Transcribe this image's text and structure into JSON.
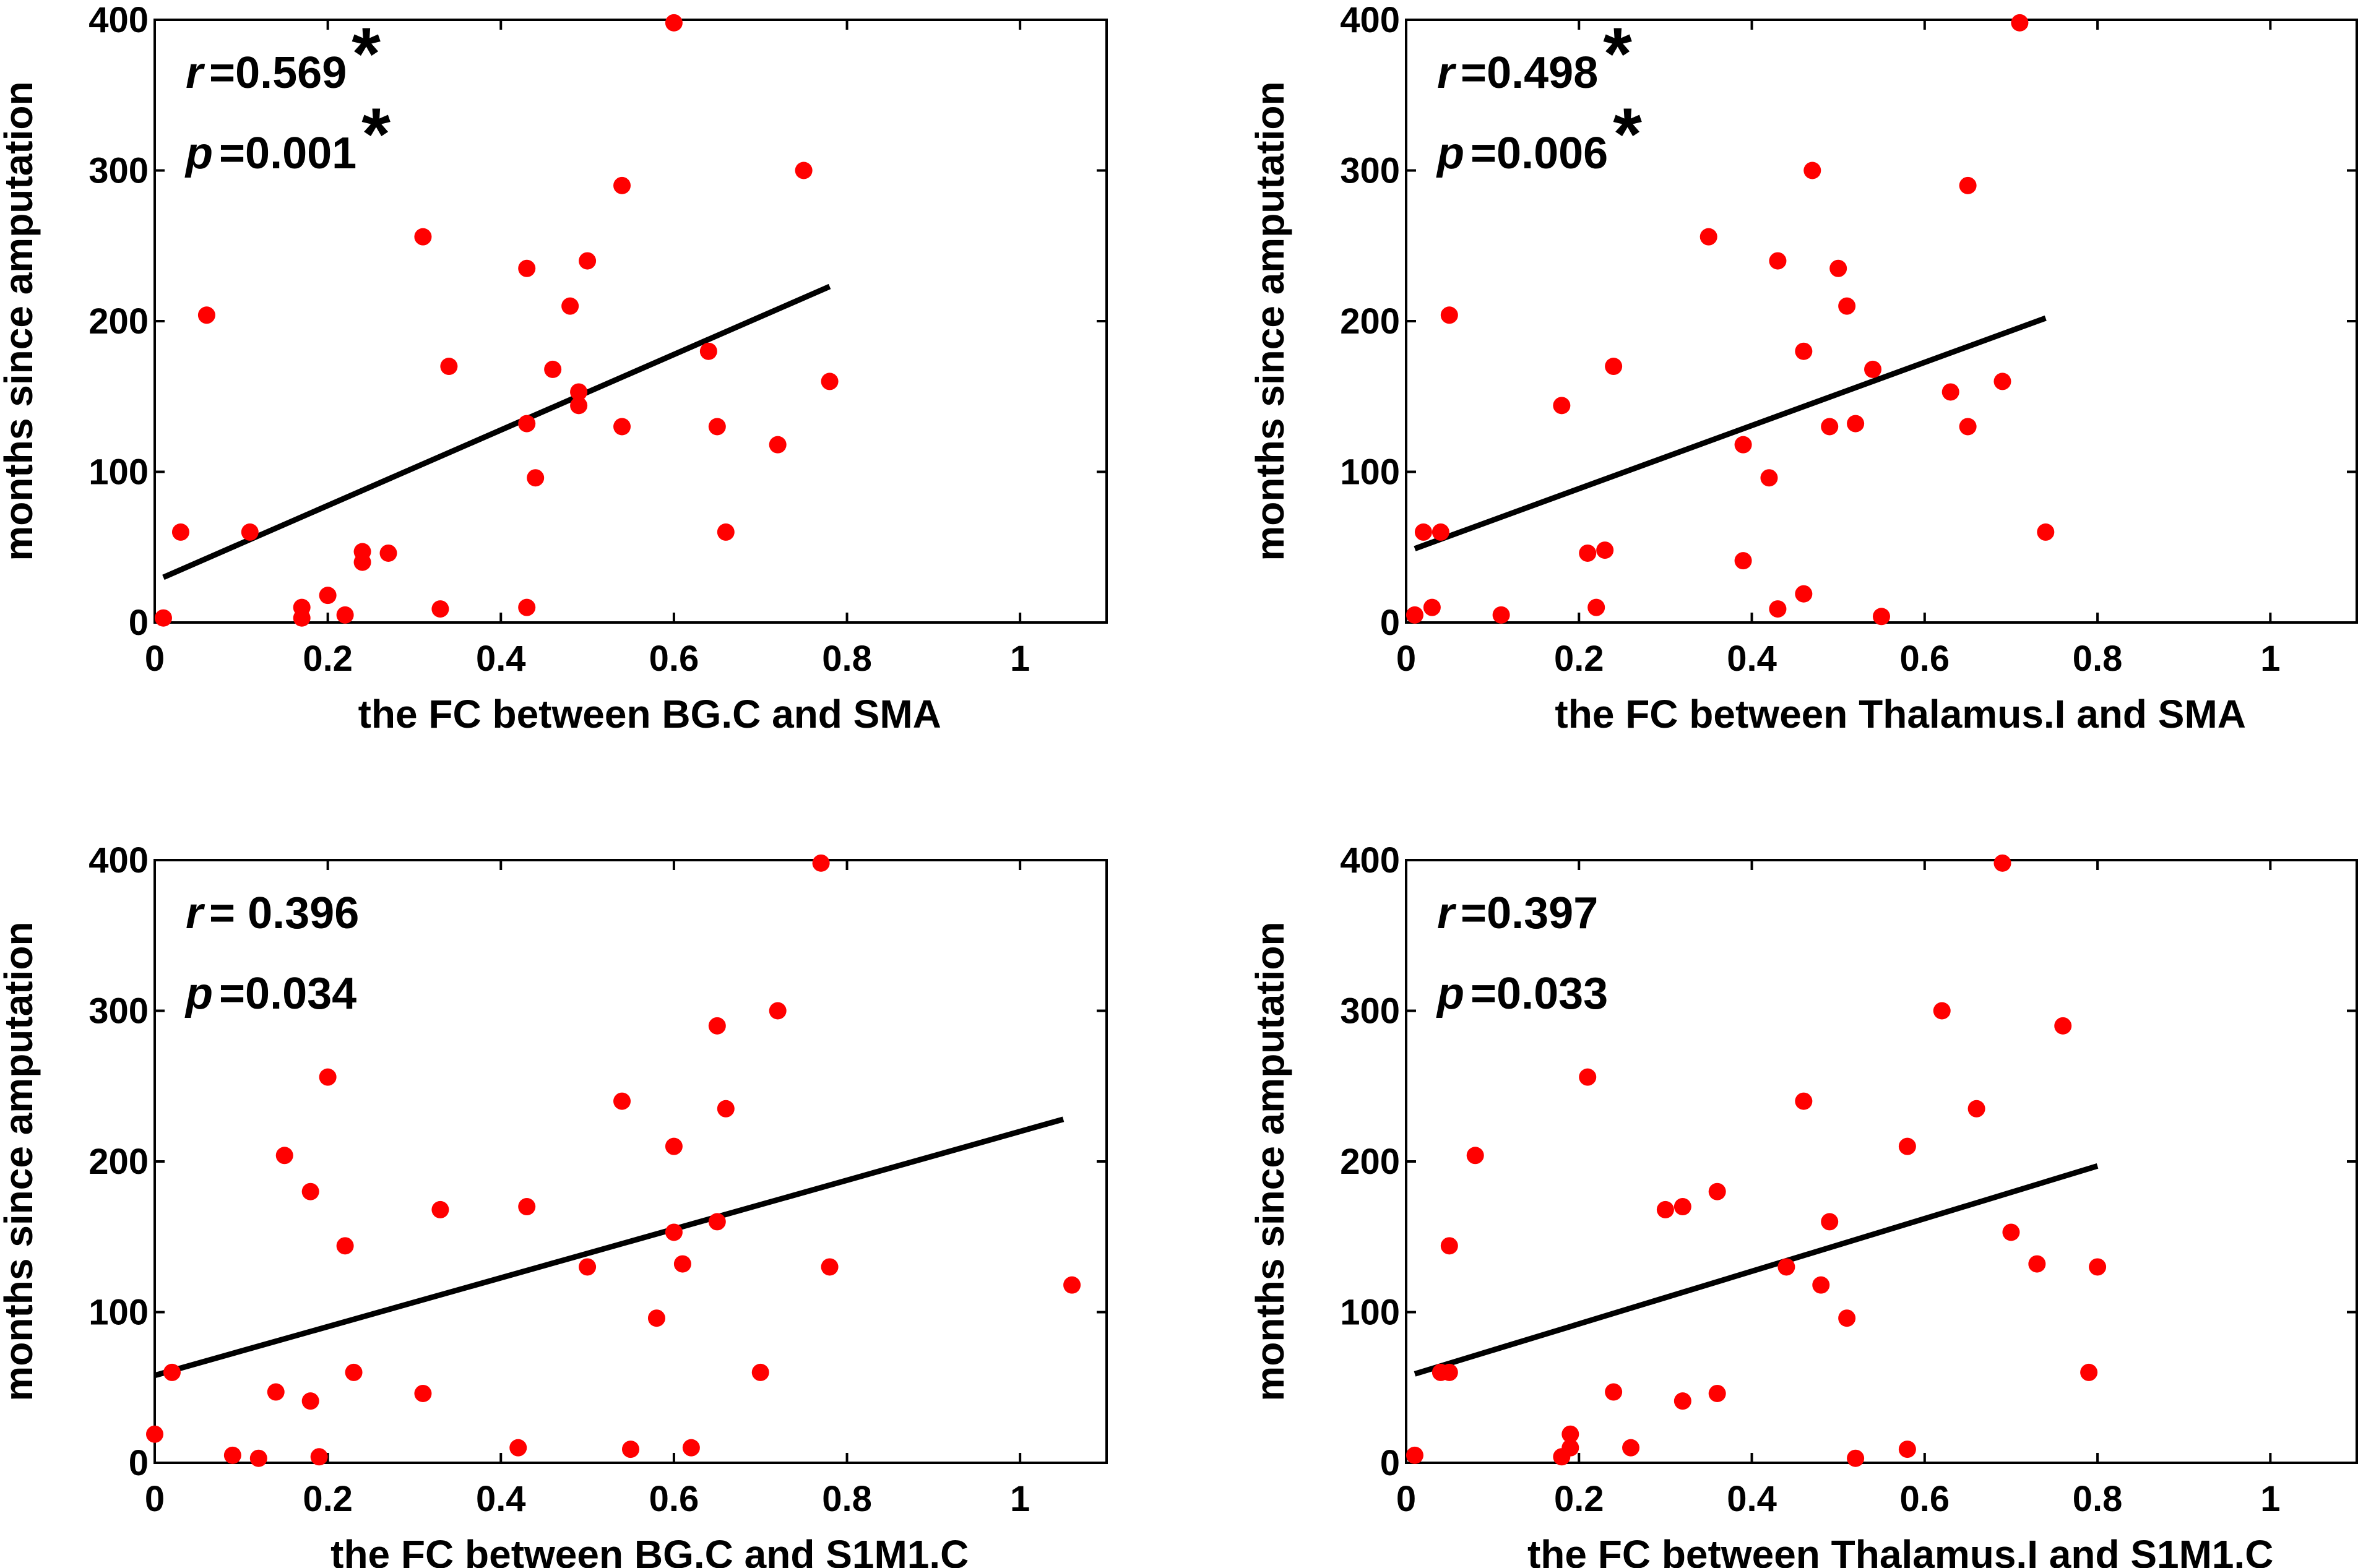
{
  "chart_data": [
    {
      "type": "scatter",
      "panel": "top-left",
      "xlabel": "the FC between BG.C and SMA",
      "ylabel": "months since amputation",
      "xlim": [
        0,
        1.1
      ],
      "ylim": [
        0,
        400
      ],
      "xticks": [
        0,
        0.2,
        0.4,
        0.6,
        0.8,
        1
      ],
      "xtick_labels": [
        "0",
        "0.2",
        "0.4",
        "0.6",
        "0.8",
        "1"
      ],
      "yticks": [
        0,
        100,
        200,
        300,
        400
      ],
      "ytick_labels": [
        "0",
        "100",
        "200",
        "300",
        "400"
      ],
      "stats": {
        "r_var": "r",
        "r_text": "=0.569",
        "p_var": "p",
        "p_text": "=0.001",
        "significance": "*"
      },
      "fit_line": {
        "x": [
          0.01,
          0.78
        ],
        "y": [
          30,
          223
        ]
      },
      "marker_color": "#ff0000",
      "line_color": "#000000",
      "points": [
        [
          0.01,
          3
        ],
        [
          0.03,
          60
        ],
        [
          0.06,
          204
        ],
        [
          0.11,
          60
        ],
        [
          0.17,
          10
        ],
        [
          0.17,
          3
        ],
        [
          0.2,
          18
        ],
        [
          0.22,
          5
        ],
        [
          0.24,
          40
        ],
        [
          0.24,
          47
        ],
        [
          0.27,
          46
        ],
        [
          0.31,
          256
        ],
        [
          0.33,
          9
        ],
        [
          0.34,
          170
        ],
        [
          0.43,
          235
        ],
        [
          0.43,
          132
        ],
        [
          0.43,
          10
        ],
        [
          0.44,
          96
        ],
        [
          0.46,
          168
        ],
        [
          0.48,
          210
        ],
        [
          0.49,
          153
        ],
        [
          0.49,
          144
        ],
        [
          0.5,
          240
        ],
        [
          0.54,
          290
        ],
        [
          0.54,
          130
        ],
        [
          0.6,
          398
        ],
        [
          0.64,
          180
        ],
        [
          0.65,
          130
        ],
        [
          0.66,
          60
        ],
        [
          0.72,
          118
        ],
        [
          0.75,
          300
        ],
        [
          0.78,
          160
        ]
      ]
    },
    {
      "type": "scatter",
      "panel": "top-right",
      "xlabel": "the FC between Thalamus.I and SMA",
      "ylabel": "months since amputation",
      "xlim": [
        0,
        1.1
      ],
      "ylim": [
        0,
        400
      ],
      "xticks": [
        0,
        0.2,
        0.4,
        0.6,
        0.8,
        1
      ],
      "xtick_labels": [
        "0",
        "0.2",
        "0.4",
        "0.6",
        "0.8",
        "1"
      ],
      "yticks": [
        0,
        100,
        200,
        300,
        400
      ],
      "ytick_labels": [
        "0",
        "100",
        "200",
        "300",
        "400"
      ],
      "stats": {
        "r_var": "r",
        "r_text": "=0.498",
        "p_var": "p",
        "p_text": "=0.006",
        "significance": "*"
      },
      "fit_line": {
        "x": [
          0.01,
          0.74
        ],
        "y": [
          49,
          202
        ]
      },
      "marker_color": "#ff0000",
      "line_color": "#000000",
      "points": [
        [
          0.01,
          5
        ],
        [
          0.02,
          60
        ],
        [
          0.03,
          10
        ],
        [
          0.04,
          60
        ],
        [
          0.05,
          204
        ],
        [
          0.11,
          5
        ],
        [
          0.18,
          144
        ],
        [
          0.21,
          46
        ],
        [
          0.22,
          10
        ],
        [
          0.23,
          48
        ],
        [
          0.24,
          170
        ],
        [
          0.35,
          256
        ],
        [
          0.39,
          118
        ],
        [
          0.39,
          41
        ],
        [
          0.42,
          96
        ],
        [
          0.43,
          240
        ],
        [
          0.43,
          9
        ],
        [
          0.46,
          180
        ],
        [
          0.46,
          19
        ],
        [
          0.47,
          300
        ],
        [
          0.49,
          130
        ],
        [
          0.5,
          235
        ],
        [
          0.51,
          210
        ],
        [
          0.52,
          132
        ],
        [
          0.54,
          168
        ],
        [
          0.55,
          4
        ],
        [
          0.63,
          153
        ],
        [
          0.65,
          290
        ],
        [
          0.65,
          130
        ],
        [
          0.69,
          160
        ],
        [
          0.71,
          398
        ],
        [
          0.74,
          60
        ]
      ]
    },
    {
      "type": "scatter",
      "panel": "bottom-left",
      "xlabel": "the FC between BG.C and S1M1.C",
      "ylabel": "months since amputation",
      "xlim": [
        0,
        1.1
      ],
      "ylim": [
        0,
        400
      ],
      "xticks": [
        0,
        0.2,
        0.4,
        0.6,
        0.8,
        1
      ],
      "xtick_labels": [
        "0",
        "0.2",
        "0.4",
        "0.6",
        "0.8",
        "1"
      ],
      "yticks": [
        0,
        100,
        200,
        300,
        400
      ],
      "ytick_labels": [
        "0",
        "100",
        "200",
        "300",
        "400"
      ],
      "stats": {
        "r_var": "r",
        "r_text": "= 0.396",
        "p_var": "p",
        "p_text": "=0.034",
        "significance": ""
      },
      "fit_line": {
        "x": [
          0.0,
          1.05
        ],
        "y": [
          58,
          228
        ]
      },
      "marker_color": "#ff0000",
      "line_color": "#000000",
      "points": [
        [
          0.0,
          19
        ],
        [
          0.02,
          60
        ],
        [
          0.09,
          5
        ],
        [
          0.12,
          3
        ],
        [
          0.14,
          47
        ],
        [
          0.15,
          204
        ],
        [
          0.18,
          41
        ],
        [
          0.18,
          180
        ],
        [
          0.19,
          4
        ],
        [
          0.2,
          256
        ],
        [
          0.22,
          144
        ],
        [
          0.23,
          60
        ],
        [
          0.31,
          46
        ],
        [
          0.33,
          168
        ],
        [
          0.42,
          10
        ],
        [
          0.43,
          170
        ],
        [
          0.5,
          130
        ],
        [
          0.54,
          240
        ],
        [
          0.55,
          9
        ],
        [
          0.58,
          96
        ],
        [
          0.6,
          153
        ],
        [
          0.6,
          210
        ],
        [
          0.61,
          132
        ],
        [
          0.62,
          10
        ],
        [
          0.65,
          290
        ],
        [
          0.65,
          160
        ],
        [
          0.66,
          235
        ],
        [
          0.7,
          60
        ],
        [
          0.72,
          300
        ],
        [
          0.77,
          398
        ],
        [
          0.78,
          130
        ],
        [
          1.06,
          118
        ]
      ]
    },
    {
      "type": "scatter",
      "panel": "bottom-right",
      "xlabel": "the FC between Thalamus.I and S1M1.C",
      "ylabel": "months since amputation",
      "xlim": [
        0,
        1.1
      ],
      "ylim": [
        0,
        400
      ],
      "xticks": [
        0,
        0.2,
        0.4,
        0.6,
        0.8,
        1
      ],
      "xtick_labels": [
        "0",
        "0.2",
        "0.4",
        "0.6",
        "0.8",
        "1"
      ],
      "yticks": [
        0,
        100,
        200,
        300,
        400
      ],
      "ytick_labels": [
        "0",
        "100",
        "200",
        "300",
        "400"
      ],
      "stats": {
        "r_var": "r",
        "r_text": "=0.397",
        "p_var": "p",
        "p_text": "=0.033",
        "significance": ""
      },
      "fit_line": {
        "x": [
          0.01,
          0.8
        ],
        "y": [
          59,
          197
        ]
      },
      "marker_color": "#ff0000",
      "line_color": "#000000",
      "points": [
        [
          0.01,
          5
        ],
        [
          0.04,
          60
        ],
        [
          0.05,
          60
        ],
        [
          0.05,
          144
        ],
        [
          0.08,
          204
        ],
        [
          0.18,
          4
        ],
        [
          0.19,
          10
        ],
        [
          0.19,
          19
        ],
        [
          0.21,
          256
        ],
        [
          0.24,
          47
        ],
        [
          0.26,
          10
        ],
        [
          0.3,
          168
        ],
        [
          0.32,
          41
        ],
        [
          0.32,
          170
        ],
        [
          0.36,
          46
        ],
        [
          0.36,
          180
        ],
        [
          0.44,
          130
        ],
        [
          0.46,
          240
        ],
        [
          0.48,
          118
        ],
        [
          0.49,
          160
        ],
        [
          0.51,
          96
        ],
        [
          0.52,
          3
        ],
        [
          0.58,
          210
        ],
        [
          0.58,
          9
        ],
        [
          0.62,
          300
        ],
        [
          0.66,
          235
        ],
        [
          0.69,
          398
        ],
        [
          0.7,
          153
        ],
        [
          0.73,
          132
        ],
        [
          0.76,
          290
        ],
        [
          0.79,
          60
        ],
        [
          0.8,
          130
        ]
      ]
    }
  ]
}
